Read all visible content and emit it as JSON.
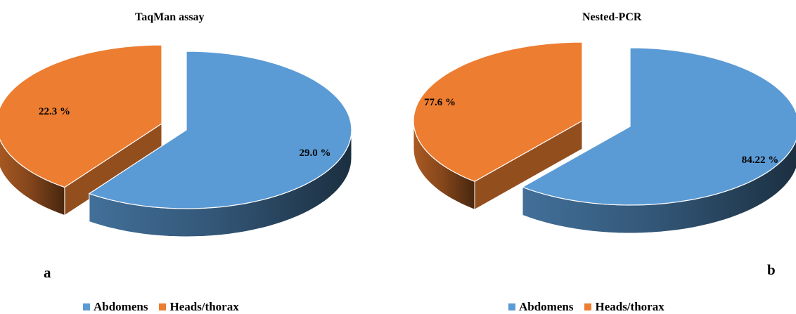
{
  "colors": {
    "abdomens": "#5b9bd5",
    "heads_thorax": "#ed7d31"
  },
  "legend": {
    "abdomens": "Abdomens",
    "heads_thorax": "Heads/thorax"
  },
  "chart_data": [
    {
      "type": "pie",
      "panel": "a",
      "title": "TaqMan assay",
      "slices": [
        {
          "name": "Abdomens",
          "share": 0.6,
          "label": "29.0 %"
        },
        {
          "name": "Heads/thorax",
          "share": 0.4,
          "label": "22.3 %"
        }
      ],
      "legend_position": "bottom-left"
    },
    {
      "type": "pie",
      "panel": "b",
      "title": "Nested-PCR",
      "slices": [
        {
          "name": "Abdomens",
          "share": 0.61,
          "label": "84.22 %"
        },
        {
          "name": "Heads/thorax",
          "share": 0.39,
          "label": "77.6 %"
        }
      ],
      "legend_position": "bottom-right"
    }
  ]
}
